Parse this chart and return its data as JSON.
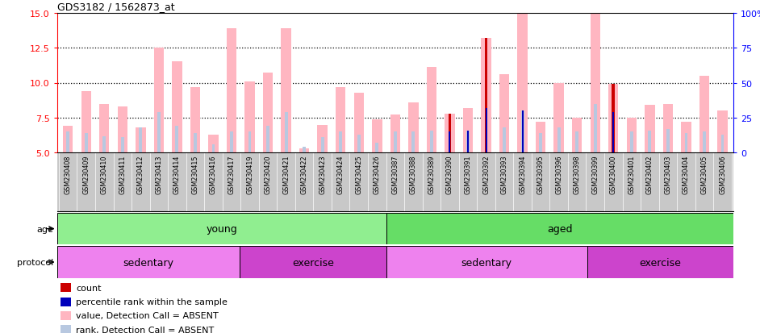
{
  "title": "GDS3182 / 1562873_at",
  "samples": [
    "GSM230408",
    "GSM230409",
    "GSM230410",
    "GSM230411",
    "GSM230412",
    "GSM230413",
    "GSM230414",
    "GSM230415",
    "GSM230416",
    "GSM230417",
    "GSM230419",
    "GSM230420",
    "GSM230421",
    "GSM230422",
    "GSM230423",
    "GSM230424",
    "GSM230425",
    "GSM230426",
    "GSM230387",
    "GSM230388",
    "GSM230389",
    "GSM230390",
    "GSM230391",
    "GSM230392",
    "GSM230393",
    "GSM230394",
    "GSM230395",
    "GSM230396",
    "GSM230398",
    "GSM230399",
    "GSM230400",
    "GSM230401",
    "GSM230402",
    "GSM230403",
    "GSM230404",
    "GSM230405",
    "GSM230406"
  ],
  "values": [
    6.9,
    9.4,
    8.5,
    8.3,
    6.8,
    12.5,
    11.5,
    9.7,
    6.3,
    13.9,
    10.1,
    10.7,
    13.9,
    5.3,
    7.0,
    9.7,
    9.3,
    7.4,
    7.7,
    8.6,
    11.1,
    7.8,
    8.2,
    13.2,
    10.6,
    15.0,
    7.2,
    10.0,
    7.5,
    15.0,
    9.9,
    7.5,
    8.4,
    8.5,
    7.2,
    10.5,
    8.0
  ],
  "rank_values": [
    6.5,
    6.4,
    6.2,
    6.1,
    6.8,
    7.9,
    6.9,
    6.4,
    5.6,
    6.5,
    6.5,
    6.9,
    7.9,
    5.4,
    6.1,
    6.5,
    6.3,
    5.7,
    6.5,
    6.5,
    6.6,
    6.5,
    6.6,
    8.2,
    6.8,
    8.0,
    6.4,
    6.8,
    6.5,
    8.5,
    7.9,
    6.5,
    6.6,
    6.7,
    6.4,
    6.5,
    6.3
  ],
  "count_indices": [
    21,
    23,
    30
  ],
  "count_vals": [
    7.8,
    13.2,
    9.9
  ],
  "pctile_indices": [
    21,
    22,
    23,
    25,
    30
  ],
  "pctile_vals": [
    6.5,
    6.6,
    8.2,
    8.0,
    7.9
  ],
  "ymin": 5,
  "ymax": 15,
  "yticks_left": [
    5,
    7.5,
    10.0,
    12.5,
    15
  ],
  "yticks_right": [
    0,
    25,
    50,
    75,
    100
  ],
  "ytick_labels_right": [
    "0",
    "25",
    "50",
    "75",
    "100%"
  ],
  "hlines": [
    7.5,
    10.0,
    12.5
  ],
  "age_bands": [
    {
      "label": "young",
      "start": 0,
      "end": 18,
      "color": "#90EE90"
    },
    {
      "label": "aged",
      "start": 18,
      "end": 37,
      "color": "#66DD66"
    }
  ],
  "protocol_bands": [
    {
      "label": "sedentary",
      "start": 0,
      "end": 10,
      "color": "#EE82EE"
    },
    {
      "label": "exercise",
      "start": 10,
      "end": 18,
      "color": "#CC44CC"
    },
    {
      "label": "sedentary",
      "start": 18,
      "end": 29,
      "color": "#EE82EE"
    },
    {
      "label": "exercise",
      "start": 29,
      "end": 37,
      "color": "#CC44CC"
    }
  ],
  "value_color": "#FFB6C1",
  "rank_color": "#B8C8E0",
  "count_color": "#CC0000",
  "pctile_color": "#0000BB",
  "xlabel_bg": "#C8C8C8",
  "legend": [
    {
      "label": "count",
      "color": "#CC0000"
    },
    {
      "label": "percentile rank within the sample",
      "color": "#0000BB"
    },
    {
      "label": "value, Detection Call = ABSENT",
      "color": "#FFB6C1"
    },
    {
      "label": "rank, Detection Call = ABSENT",
      "color": "#B8C8E0"
    }
  ]
}
